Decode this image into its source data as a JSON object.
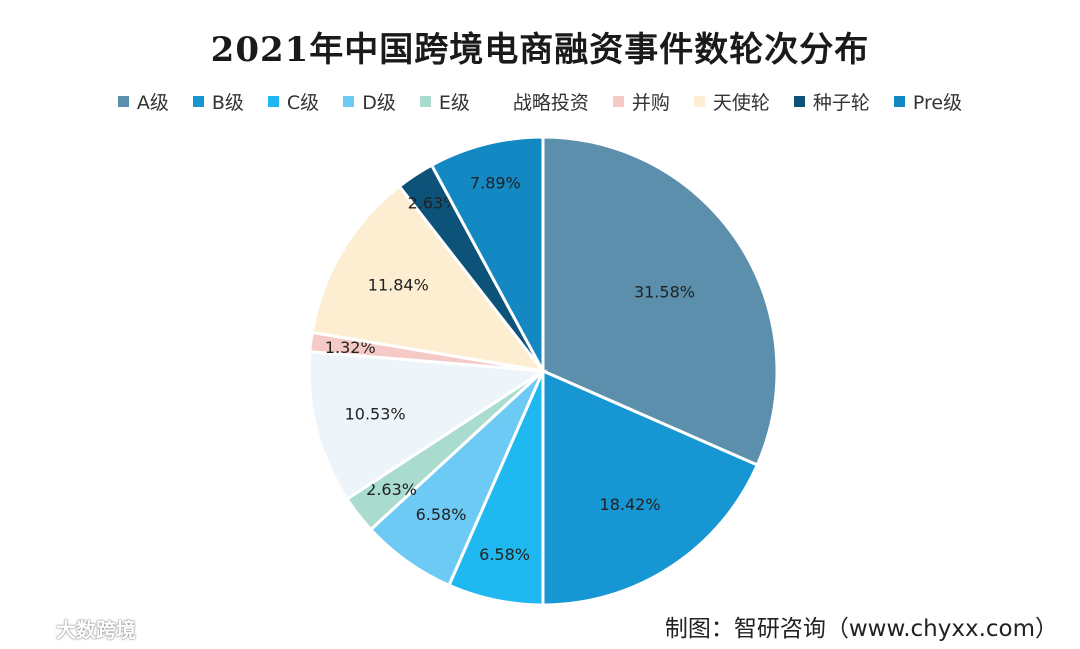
{
  "chart_data": {
    "type": "pie",
    "title": "2021年中国跨境电商融资事件数轮次分布",
    "legend_position": "top",
    "slices": [
      {
        "name": "A级",
        "value": 31.58,
        "label": "31.58%",
        "color": "#5b8fac"
      },
      {
        "name": "B级",
        "value": 18.42,
        "label": "18.42%",
        "color": "#1696d2"
      },
      {
        "name": "C级",
        "value": 6.58,
        "label": "6.58%",
        "color": "#1fb8f0"
      },
      {
        "name": "D级",
        "value": 6.58,
        "label": "6.58%",
        "color": "#6ccaf4"
      },
      {
        "name": "E级",
        "value": 2.63,
        "label": "2.63%",
        "color": "#a9dccf"
      },
      {
        "name": "战略投资",
        "value": 10.53,
        "label": "10.53%",
        "color": "#edf5fa"
      },
      {
        "name": "并购",
        "value": 1.32,
        "label": "1.32%",
        "color": "#f5c9c6"
      },
      {
        "name": "天使轮",
        "value": 11.84,
        "label": "11.84%",
        "color": "#fdeed2"
      },
      {
        "name": "种子轮",
        "value": 2.63,
        "label": "2.63%",
        "color": "#0d5379"
      },
      {
        "name": "Pre级",
        "value": 7.89,
        "label": "7.89%",
        "color": "#1388c3"
      }
    ],
    "legend_colors": [
      "#5b8fac",
      "#1696d2",
      "#1fb8f0",
      "#6ccaf4",
      "#a9dccf",
      "#ffffff",
      "#f5c9c6",
      "#fdeed2",
      "#0d5379",
      "#1388c3"
    ]
  },
  "source": "制图：智研咨询（www.chyxx.com）",
  "watermark": {
    "text": "大数跨境",
    "icon": "chat-bubble-logo-icon"
  }
}
